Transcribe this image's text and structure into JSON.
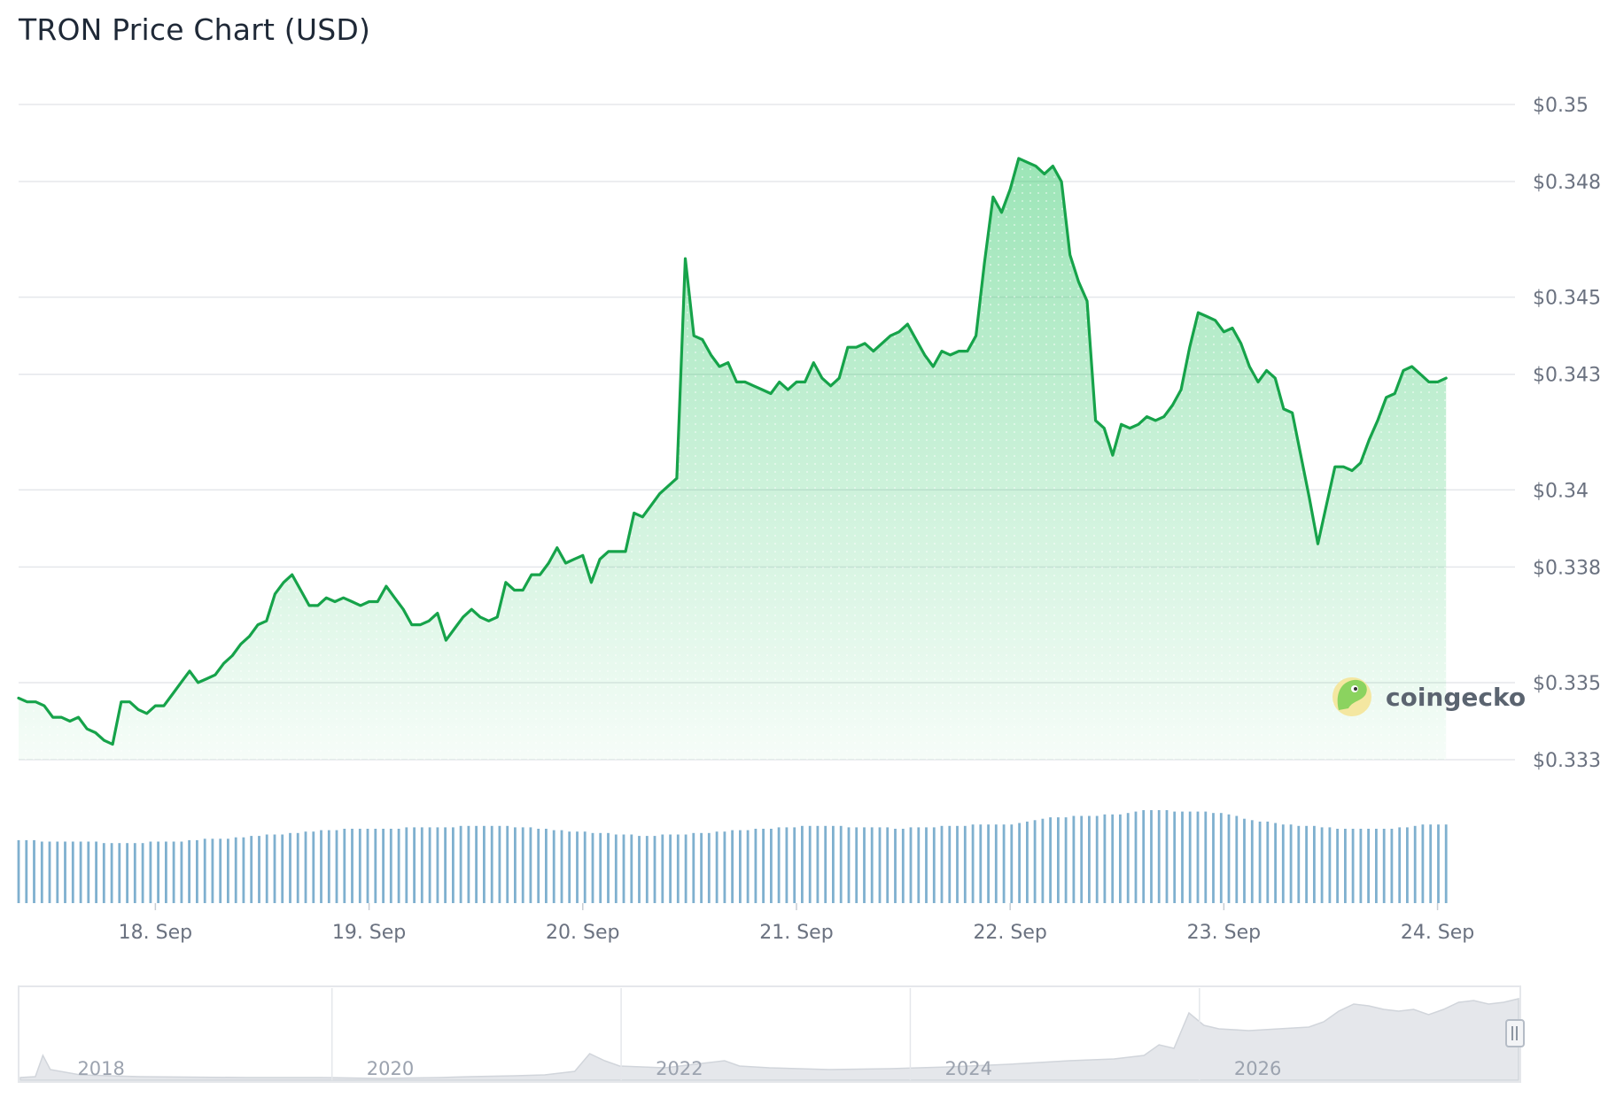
{
  "title": "TRON Price Chart (USD)",
  "brand": {
    "name": "coingecko",
    "logo_icon": "gecko-logo-icon"
  },
  "colors": {
    "line": "#16a34a",
    "area_top": "#22c55e",
    "volume": "#7fb0cf",
    "grid": "#e5e7eb",
    "navigator_fill": "#e5e7eb"
  },
  "chart_data": {
    "type": "line",
    "title": "TRON Price Chart (USD)",
    "y_unit": "USD",
    "ylim": [
      0.333,
      0.35
    ],
    "y_ticks": [
      "$0.35",
      "$0.348",
      "$0.345",
      "$0.343",
      "$0.34",
      "$0.338",
      "$0.335",
      "$0.333"
    ],
    "y_tick_values": [
      0.35,
      0.348,
      0.345,
      0.343,
      0.34,
      0.338,
      0.335,
      0.333
    ],
    "x_ticks": [
      "18. Sep",
      "19. Sep",
      "20. Sep",
      "21. Sep",
      "22. Sep",
      "23. Sep",
      "24. Sep"
    ],
    "x_tick_days": [
      18,
      19,
      20,
      21,
      22,
      23,
      24
    ],
    "grid": true,
    "series": [
      {
        "points": [
          [
            17.36,
            0.3346
          ],
          [
            17.4,
            0.3345
          ],
          [
            17.44,
            0.3345
          ],
          [
            17.48,
            0.3344
          ],
          [
            17.52,
            0.3341
          ],
          [
            17.56,
            0.3341
          ],
          [
            17.6,
            0.334
          ],
          [
            17.64,
            0.3341
          ],
          [
            17.68,
            0.3338
          ],
          [
            17.72,
            0.3337
          ],
          [
            17.76,
            0.3335
          ],
          [
            17.8,
            0.3334
          ],
          [
            17.84,
            0.3345
          ],
          [
            17.88,
            0.3345
          ],
          [
            17.92,
            0.3343
          ],
          [
            17.96,
            0.3342
          ],
          [
            18.0,
            0.3344
          ],
          [
            18.04,
            0.3344
          ],
          [
            18.08,
            0.3347
          ],
          [
            18.12,
            0.335
          ],
          [
            18.16,
            0.3353
          ],
          [
            18.2,
            0.335
          ],
          [
            18.24,
            0.3351
          ],
          [
            18.28,
            0.3352
          ],
          [
            18.32,
            0.3355
          ],
          [
            18.36,
            0.3357
          ],
          [
            18.4,
            0.336
          ],
          [
            18.44,
            0.3362
          ],
          [
            18.48,
            0.3365
          ],
          [
            18.52,
            0.3366
          ],
          [
            18.56,
            0.3373
          ],
          [
            18.6,
            0.3376
          ],
          [
            18.64,
            0.3378
          ],
          [
            18.68,
            0.3374
          ],
          [
            18.72,
            0.337
          ],
          [
            18.76,
            0.337
          ],
          [
            18.8,
            0.3372
          ],
          [
            18.84,
            0.3371
          ],
          [
            18.88,
            0.3372
          ],
          [
            18.92,
            0.3371
          ],
          [
            18.96,
            0.337
          ],
          [
            19.0,
            0.3371
          ],
          [
            19.04,
            0.3371
          ],
          [
            19.08,
            0.3375
          ],
          [
            19.12,
            0.3372
          ],
          [
            19.16,
            0.3369
          ],
          [
            19.2,
            0.3365
          ],
          [
            19.24,
            0.3365
          ],
          [
            19.28,
            0.3366
          ],
          [
            19.32,
            0.3368
          ],
          [
            19.36,
            0.3361
          ],
          [
            19.4,
            0.3364
          ],
          [
            19.44,
            0.3367
          ],
          [
            19.48,
            0.3369
          ],
          [
            19.52,
            0.3367
          ],
          [
            19.56,
            0.3366
          ],
          [
            19.6,
            0.3367
          ],
          [
            19.64,
            0.3376
          ],
          [
            19.68,
            0.3374
          ],
          [
            19.72,
            0.3374
          ],
          [
            19.76,
            0.3378
          ],
          [
            19.8,
            0.3378
          ],
          [
            19.84,
            0.3381
          ],
          [
            19.88,
            0.3385
          ],
          [
            19.92,
            0.3381
          ],
          [
            19.96,
            0.3382
          ],
          [
            20.0,
            0.3383
          ],
          [
            20.04,
            0.3376
          ],
          [
            20.08,
            0.3382
          ],
          [
            20.12,
            0.3384
          ],
          [
            20.16,
            0.3384
          ],
          [
            20.2,
            0.3384
          ],
          [
            20.24,
            0.3394
          ],
          [
            20.28,
            0.3393
          ],
          [
            20.32,
            0.3396
          ],
          [
            20.36,
            0.3399
          ],
          [
            20.4,
            0.3401
          ],
          [
            20.44,
            0.3403
          ],
          [
            20.48,
            0.346
          ],
          [
            20.52,
            0.344
          ],
          [
            20.56,
            0.3439
          ],
          [
            20.6,
            0.3435
          ],
          [
            20.64,
            0.3432
          ],
          [
            20.68,
            0.3433
          ],
          [
            20.72,
            0.3428
          ],
          [
            20.76,
            0.3428
          ],
          [
            20.8,
            0.3427
          ],
          [
            20.84,
            0.3426
          ],
          [
            20.88,
            0.3425
          ],
          [
            20.92,
            0.3428
          ],
          [
            20.96,
            0.3426
          ],
          [
            21.0,
            0.3428
          ],
          [
            21.04,
            0.3428
          ],
          [
            21.08,
            0.3433
          ],
          [
            21.12,
            0.3429
          ],
          [
            21.16,
            0.3427
          ],
          [
            21.2,
            0.3429
          ],
          [
            21.24,
            0.3437
          ],
          [
            21.28,
            0.3437
          ],
          [
            21.32,
            0.3438
          ],
          [
            21.36,
            0.3436
          ],
          [
            21.4,
            0.3438
          ],
          [
            21.44,
            0.344
          ],
          [
            21.48,
            0.3441
          ],
          [
            21.52,
            0.3443
          ],
          [
            21.56,
            0.3439
          ],
          [
            21.6,
            0.3435
          ],
          [
            21.64,
            0.3432
          ],
          [
            21.68,
            0.3436
          ],
          [
            21.72,
            0.3435
          ],
          [
            21.76,
            0.3436
          ],
          [
            21.8,
            0.3436
          ],
          [
            21.84,
            0.344
          ],
          [
            21.88,
            0.3459
          ],
          [
            21.92,
            0.3476
          ],
          [
            21.96,
            0.3472
          ],
          [
            22.0,
            0.3478
          ],
          [
            22.04,
            0.3486
          ],
          [
            22.08,
            0.3485
          ],
          [
            22.12,
            0.3484
          ],
          [
            22.16,
            0.3482
          ],
          [
            22.2,
            0.3484
          ],
          [
            22.24,
            0.348
          ],
          [
            22.28,
            0.3461
          ],
          [
            22.32,
            0.3454
          ],
          [
            22.36,
            0.3449
          ],
          [
            22.4,
            0.3418
          ],
          [
            22.44,
            0.3416
          ],
          [
            22.48,
            0.3409
          ],
          [
            22.52,
            0.3417
          ],
          [
            22.56,
            0.3416
          ],
          [
            22.6,
            0.3417
          ],
          [
            22.64,
            0.3419
          ],
          [
            22.68,
            0.3418
          ],
          [
            22.72,
            0.3419
          ],
          [
            22.76,
            0.3422
          ],
          [
            22.8,
            0.3426
          ],
          [
            22.84,
            0.3437
          ],
          [
            22.88,
            0.3446
          ],
          [
            22.92,
            0.3445
          ],
          [
            22.96,
            0.3444
          ],
          [
            23.0,
            0.3441
          ],
          [
            23.04,
            0.3442
          ],
          [
            23.08,
            0.3438
          ],
          [
            23.12,
            0.3432
          ],
          [
            23.16,
            0.3428
          ],
          [
            23.2,
            0.3431
          ],
          [
            23.24,
            0.3429
          ],
          [
            23.28,
            0.3421
          ],
          [
            23.32,
            0.342
          ],
          [
            23.36,
            0.3409
          ],
          [
            23.4,
            0.3398
          ],
          [
            23.44,
            0.3386
          ],
          [
            23.48,
            0.3396
          ],
          [
            23.52,
            0.3406
          ],
          [
            23.56,
            0.3406
          ],
          [
            23.6,
            0.3405
          ],
          [
            23.64,
            0.3407
          ],
          [
            23.68,
            0.3413
          ],
          [
            23.72,
            0.3418
          ],
          [
            23.76,
            0.3424
          ],
          [
            23.8,
            0.3425
          ],
          [
            23.84,
            0.3431
          ],
          [
            23.88,
            0.3432
          ],
          [
            23.92,
            0.343
          ],
          [
            23.96,
            0.3428
          ],
          [
            24.0,
            0.3428
          ],
          [
            24.04,
            0.3429
          ]
        ]
      }
    ],
    "volume": [
      44,
      44,
      44,
      43,
      43,
      43,
      43,
      43,
      43,
      43,
      43,
      42,
      42,
      42,
      42,
      42,
      42,
      43,
      43,
      43,
      43,
      43,
      44,
      44,
      45,
      45,
      45,
      45,
      46,
      46,
      47,
      47,
      48,
      48,
      48,
      49,
      49,
      50,
      50,
      51,
      51,
      51,
      52,
      52,
      52,
      52,
      52,
      52,
      52,
      52,
      53,
      53,
      53,
      53,
      53,
      53,
      53,
      54,
      54,
      54,
      54,
      54,
      54,
      54,
      53,
      53,
      53,
      52,
      52,
      51,
      51,
      50,
      50,
      50,
      49,
      49,
      49,
      48,
      48,
      48,
      47,
      47,
      47,
      48,
      48,
      48,
      48,
      49,
      49,
      49,
      50,
      50,
      51,
      51,
      51,
      52,
      52,
      52,
      53,
      53,
      53,
      54,
      54,
      54,
      54,
      54,
      54,
      53,
      53,
      53,
      53,
      53,
      53,
      52,
      52,
      53,
      53,
      53,
      53,
      54,
      54,
      54,
      54,
      55,
      55,
      55,
      55,
      55,
      55,
      56,
      57,
      58,
      59,
      60,
      60,
      60,
      61,
      61,
      61,
      61,
      62,
      62,
      62,
      63,
      64,
      65,
      65,
      65,
      65,
      64,
      64,
      64,
      64,
      64,
      63,
      63,
      62,
      61,
      59,
      58,
      57,
      57,
      56,
      55,
      55,
      54,
      54,
      54,
      53,
      53,
      52,
      52,
      52,
      52,
      52,
      52,
      52,
      52,
      53,
      53,
      54,
      55,
      55,
      55,
      55
    ],
    "navigator": {
      "x_ticks": [
        "2018",
        "2020",
        "2022",
        "2024",
        "2026"
      ]
    }
  }
}
